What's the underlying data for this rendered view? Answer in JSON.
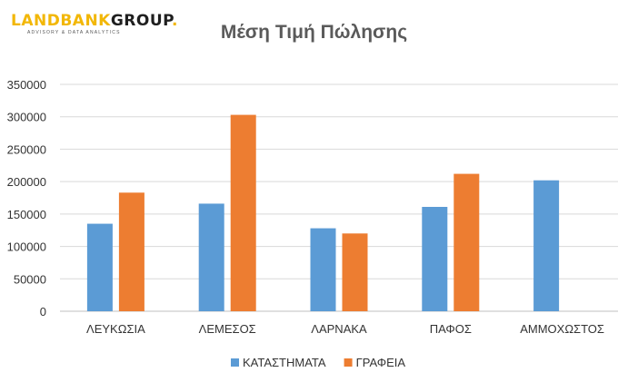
{
  "logo": {
    "land": "LANDBANK",
    "group": "GROUP",
    "tagline": "ADVISORY & DATA ANALYTICS"
  },
  "chart_data": {
    "type": "bar",
    "title": "Μέση Τιμή Πώλησης",
    "xlabel": "",
    "ylabel": "",
    "ylim": [
      0,
      350000
    ],
    "yticks": [
      0,
      50000,
      100000,
      150000,
      200000,
      250000,
      300000,
      350000
    ],
    "grid": true,
    "legend_position": "bottom",
    "categories": [
      "ΛΕΥΚΩΣΙΑ",
      "ΛΕΜΕΣΟΣ",
      "ΛΑΡΝΑΚΑ",
      "ΠΑΦΟΣ",
      "ΑΜΜΟΧΩΣΤΟΣ"
    ],
    "series": [
      {
        "name": "ΚΑΤΑΣΤΗΜΑΤΑ",
        "color": "#5b9bd5",
        "values": [
          135000,
          166000,
          128000,
          161000,
          202000
        ]
      },
      {
        "name": "ΓΡΑΦΕΙΑ",
        "color": "#ed7d31",
        "values": [
          183000,
          303000,
          120000,
          212000,
          null
        ]
      }
    ]
  }
}
